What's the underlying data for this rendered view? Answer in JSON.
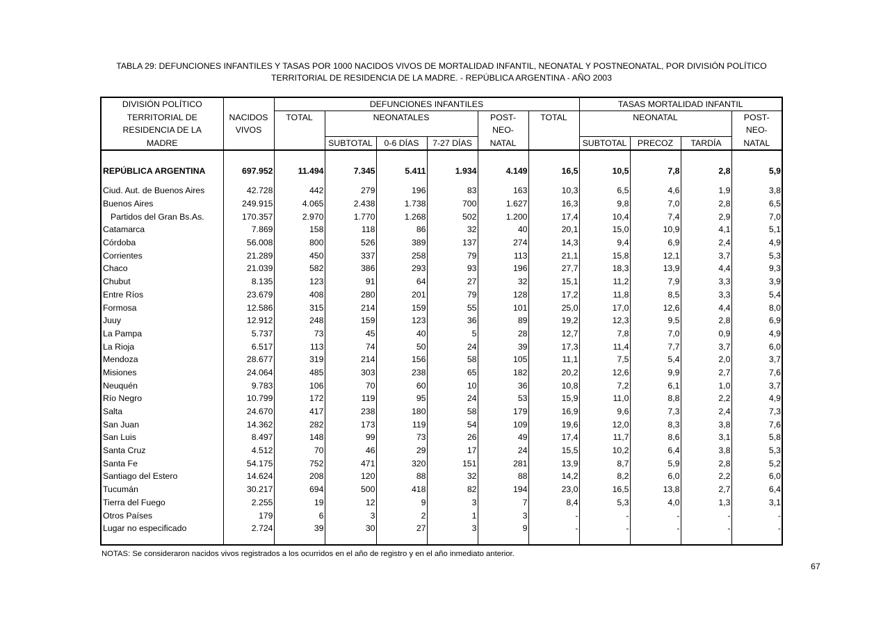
{
  "title_line1": "TABLA 29: DEFUNCIONES INFANTILES Y TASAS POR 1000 NACIDOS VIVOS DE MORTALIDAD INFANTIL, NEONATAL Y POSTNEONATAL, POR DIVISIÓN POLÍTICO",
  "title_line2": "TERRITORIAL DE RESIDENCIA DE LA MADRE. - REPÚBLICA ARGENTINA - AÑO 2003",
  "header": {
    "division": [
      "DIVISIÓN POLÍTICO",
      "TERRITORIAL DE",
      "RESIDENCIA DE LA",
      "MADRE"
    ],
    "nacidos": [
      "NACIDOS",
      "VIVOS"
    ],
    "defunciones": "DEFUNCIONES  INFANTILES",
    "def_total": "TOTAL",
    "neonatales": "NEONATALES",
    "def_post": [
      "POST-",
      "NEO-",
      "NATAL"
    ],
    "def_subtotal": "SUBTOTAL",
    "def_0_6": "0-6 DÍAS",
    "def_7_27": "7-27 DÍAS",
    "tasas": "TASAS MORTALIDAD INFANTIL",
    "tasa_total": "TOTAL",
    "neonatal": "NEONATAL",
    "tasa_post": [
      "POST-",
      "NEO-",
      "NATAL"
    ],
    "tasa_subtotal": "SUBTOTAL",
    "precoz": "PRECOZ",
    "tardia": "TARDÍA"
  },
  "national": [
    "REPÚBLICA ARGENTINA",
    "697.952",
    "11.494",
    "7.345",
    "5.411",
    "1.934",
    "4.149",
    "16,5",
    "10,5",
    "7,8",
    "2,8",
    "5,9"
  ],
  "rows": [
    [
      "Ciud. Aut. de  Buenos Aires",
      "42.728",
      "442",
      "279",
      "196",
      "83",
      "163",
      "10,3",
      "6,5",
      "4,6",
      "1,9",
      "3,8"
    ],
    [
      "Buenos Aires",
      "249.915",
      "4.065",
      "2.438",
      "1.738",
      "700",
      "1.627",
      "16,3",
      "9,8",
      "7,0",
      "2,8",
      "6,5"
    ],
    [
      "Partidos del Gran Bs.As.",
      "170.357",
      "2.970",
      "1.770",
      "1.268",
      "502",
      "1.200",
      "17,4",
      "10,4",
      "7,4",
      "2,9",
      "7,0"
    ],
    [
      "Catamarca",
      "7.869",
      "158",
      "118",
      "86",
      "32",
      "40",
      "20,1",
      "15,0",
      "10,9",
      "4,1",
      "5,1"
    ],
    [
      "Córdoba",
      "56.008",
      "800",
      "526",
      "389",
      "137",
      "274",
      "14,3",
      "9,4",
      "6,9",
      "2,4",
      "4,9"
    ],
    [
      "Corrientes",
      "21.289",
      "450",
      "337",
      "258",
      "79",
      "113",
      "21,1",
      "15,8",
      "12,1",
      "3,7",
      "5,3"
    ],
    [
      "Chaco",
      "21.039",
      "582",
      "386",
      "293",
      "93",
      "196",
      "27,7",
      "18,3",
      "13,9",
      "4,4",
      "9,3"
    ],
    [
      "Chubut",
      "8.135",
      "123",
      "91",
      "64",
      "27",
      "32",
      "15,1",
      "11,2",
      "7,9",
      "3,3",
      "3,9"
    ],
    [
      "Entre Ríos",
      "23.679",
      "408",
      "280",
      "201",
      "79",
      "128",
      "17,2",
      "11,8",
      "8,5",
      "3,3",
      "5,4"
    ],
    [
      "Formosa",
      "12.586",
      "315",
      "214",
      "159",
      "55",
      "101",
      "25,0",
      "17,0",
      "12,6",
      "4,4",
      "8,0"
    ],
    [
      "Juuy",
      "12.912",
      "248",
      "159",
      "123",
      "36",
      "89",
      "19,2",
      "12,3",
      "9,5",
      "2,8",
      "6,9"
    ],
    [
      "La Pampa",
      "5.737",
      "73",
      "45",
      "40",
      "5",
      "28",
      "12,7",
      "7,8",
      "7,0",
      "0,9",
      "4,9"
    ],
    [
      "La Rioja",
      "6.517",
      "113",
      "74",
      "50",
      "24",
      "39",
      "17,3",
      "11,4",
      "7,7",
      "3,7",
      "6,0"
    ],
    [
      "Mendoza",
      "28.677",
      "319",
      "214",
      "156",
      "58",
      "105",
      "11,1",
      "7,5",
      "5,4",
      "2,0",
      "3,7"
    ],
    [
      "Misiones",
      "24.064",
      "485",
      "303",
      "238",
      "65",
      "182",
      "20,2",
      "12,6",
      "9,9",
      "2,7",
      "7,6"
    ],
    [
      "Neuquén",
      "9.783",
      "106",
      "70",
      "60",
      "10",
      "36",
      "10,8",
      "7,2",
      "6,1",
      "1,0",
      "3,7"
    ],
    [
      "Río Negro",
      "10.799",
      "172",
      "119",
      "95",
      "24",
      "53",
      "15,9",
      "11,0",
      "8,8",
      "2,2",
      "4,9"
    ],
    [
      "Salta",
      "24.670",
      "417",
      "238",
      "180",
      "58",
      "179",
      "16,9",
      "9,6",
      "7,3",
      "2,4",
      "7,3"
    ],
    [
      "San Juan",
      "14.362",
      "282",
      "173",
      "119",
      "54",
      "109",
      "19,6",
      "12,0",
      "8,3",
      "3,8",
      "7,6"
    ],
    [
      "San Luis",
      "8.497",
      "148",
      "99",
      "73",
      "26",
      "49",
      "17,4",
      "11,7",
      "8,6",
      "3,1",
      "5,8"
    ],
    [
      "Santa Cruz",
      "4.512",
      "70",
      "46",
      "29",
      "17",
      "24",
      "15,5",
      "10,2",
      "6,4",
      "3,8",
      "5,3"
    ],
    [
      "Santa Fe",
      "54.175",
      "752",
      "471",
      "320",
      "151",
      "281",
      "13,9",
      "8,7",
      "5,9",
      "2,8",
      "5,2"
    ],
    [
      "Santiago del Estero",
      "14.624",
      "208",
      "120",
      "88",
      "32",
      "88",
      "14,2",
      "8,2",
      "6,0",
      "2,2",
      "6,0"
    ],
    [
      "Tucumán",
      "30.217",
      "694",
      "500",
      "418",
      "82",
      "194",
      "23,0",
      "16,5",
      "13,8",
      "2,7",
      "6,4"
    ],
    [
      "Tierra del Fuego",
      "2.255",
      "19",
      "12",
      "9",
      "3",
      "7",
      "8,4",
      "5,3",
      "4,0",
      "1,3",
      "3,1"
    ],
    [
      "Otros Países",
      "179",
      "6",
      "3",
      "2",
      "1",
      "3",
      "-",
      "-",
      "-",
      "-",
      "-"
    ],
    [
      "Lugar no especificado",
      "2.724",
      "39",
      "30",
      "27",
      "3",
      "9",
      "-",
      "-",
      "-",
      "-",
      "-"
    ]
  ],
  "indented_rows": [
    "Partidos del Gran Bs.As."
  ],
  "notes": "NOTAS: Se consideraron nacidos vivos registrados a los ocurridos en el año de registro y en el año inmediato anterior.",
  "page_number": "67"
}
